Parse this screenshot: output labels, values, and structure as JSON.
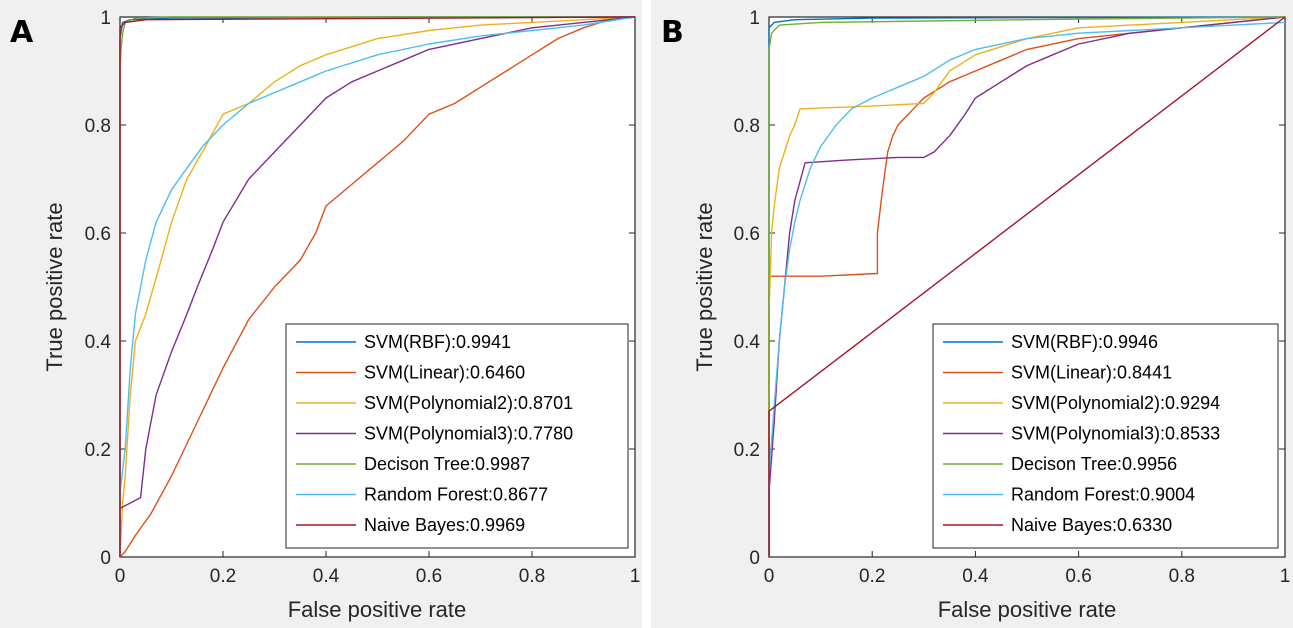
{
  "chart_data": [
    {
      "type": "line",
      "panel_label": "A",
      "xlabel": "False positive rate",
      "ylabel": "True positive rate",
      "xlim": [
        0,
        1
      ],
      "ylim": [
        0,
        1
      ],
      "xticks": [
        "0",
        "0.2",
        "0.4",
        "0.6",
        "0.8",
        "1"
      ],
      "yticks": [
        "0",
        "0.2",
        "0.4",
        "0.6",
        "0.8",
        "1"
      ],
      "grid": false,
      "legend_position": "bottom-right",
      "series": [
        {
          "name": "SVM(RBF):0.9941",
          "color": "#0072BD",
          "points": [
            [
              0,
              0
            ],
            [
              0,
              0.96
            ],
            [
              0.005,
              0.99
            ],
            [
              0.02,
              0.995
            ],
            [
              0.1,
              0.998
            ],
            [
              0.5,
              1
            ],
            [
              1,
              1
            ]
          ]
        },
        {
          "name": "SVM(Linear):0.6460",
          "color": "#D95319",
          "points": [
            [
              0,
              0
            ],
            [
              0.01,
              0.01
            ],
            [
              0.03,
              0.04
            ],
            [
              0.06,
              0.08
            ],
            [
              0.1,
              0.15
            ],
            [
              0.15,
              0.25
            ],
            [
              0.2,
              0.35
            ],
            [
              0.25,
              0.44
            ],
            [
              0.3,
              0.5
            ],
            [
              0.35,
              0.55
            ],
            [
              0.38,
              0.6
            ],
            [
              0.4,
              0.65
            ],
            [
              0.45,
              0.69
            ],
            [
              0.5,
              0.73
            ],
            [
              0.55,
              0.77
            ],
            [
              0.6,
              0.82
            ],
            [
              0.65,
              0.84
            ],
            [
              0.7,
              0.87
            ],
            [
              0.75,
              0.9
            ],
            [
              0.8,
              0.93
            ],
            [
              0.85,
              0.96
            ],
            [
              0.9,
              0.98
            ],
            [
              0.95,
              0.995
            ],
            [
              1,
              1
            ]
          ]
        },
        {
          "name": "SVM(Polynomial2):0.8701",
          "color": "#EDB120",
          "points": [
            [
              0,
              0
            ],
            [
              0.005,
              0.1
            ],
            [
              0.01,
              0.15
            ],
            [
              0.02,
              0.3
            ],
            [
              0.03,
              0.4
            ],
            [
              0.05,
              0.45
            ],
            [
              0.08,
              0.55
            ],
            [
              0.1,
              0.62
            ],
            [
              0.13,
              0.7
            ],
            [
              0.16,
              0.75
            ],
            [
              0.2,
              0.82
            ],
            [
              0.25,
              0.84
            ],
            [
              0.3,
              0.88
            ],
            [
              0.35,
              0.91
            ],
            [
              0.4,
              0.93
            ],
            [
              0.5,
              0.96
            ],
            [
              0.6,
              0.975
            ],
            [
              0.7,
              0.985
            ],
            [
              0.8,
              0.99
            ],
            [
              0.9,
              0.995
            ],
            [
              1,
              1
            ]
          ]
        },
        {
          "name": "SVM(Polynomial3):0.7780",
          "color": "#7E2F8E",
          "points": [
            [
              0,
              0
            ],
            [
              0,
              0.09
            ],
            [
              0.02,
              0.1
            ],
            [
              0.04,
              0.11
            ],
            [
              0.05,
              0.2
            ],
            [
              0.07,
              0.3
            ],
            [
              0.1,
              0.38
            ],
            [
              0.13,
              0.45
            ],
            [
              0.15,
              0.5
            ],
            [
              0.18,
              0.57
            ],
            [
              0.2,
              0.62
            ],
            [
              0.25,
              0.7
            ],
            [
              0.3,
              0.75
            ],
            [
              0.35,
              0.8
            ],
            [
              0.4,
              0.85
            ],
            [
              0.45,
              0.88
            ],
            [
              0.5,
              0.9
            ],
            [
              0.55,
              0.92
            ],
            [
              0.6,
              0.94
            ],
            [
              0.7,
              0.96
            ],
            [
              0.8,
              0.98
            ],
            [
              0.9,
              0.99
            ],
            [
              1,
              1
            ]
          ]
        },
        {
          "name": "Decison Tree:0.9987",
          "color": "#77AC30",
          "points": [
            [
              0,
              0
            ],
            [
              0,
              0.9
            ],
            [
              0.002,
              0.94
            ],
            [
              0.005,
              0.97
            ],
            [
              0.01,
              0.99
            ],
            [
              0.03,
              0.998
            ],
            [
              0.1,
              1
            ],
            [
              1,
              1
            ]
          ]
        },
        {
          "name": "Random Forest:0.8677",
          "color": "#4DBEEE",
          "points": [
            [
              0,
              0
            ],
            [
              0,
              0.12
            ],
            [
              0.01,
              0.2
            ],
            [
              0.02,
              0.35
            ],
            [
              0.03,
              0.45
            ],
            [
              0.05,
              0.55
            ],
            [
              0.07,
              0.62
            ],
            [
              0.1,
              0.68
            ],
            [
              0.13,
              0.72
            ],
            [
              0.16,
              0.76
            ],
            [
              0.2,
              0.8
            ],
            [
              0.25,
              0.84
            ],
            [
              0.3,
              0.86
            ],
            [
              0.35,
              0.88
            ],
            [
              0.4,
              0.9
            ],
            [
              0.5,
              0.93
            ],
            [
              0.6,
              0.95
            ],
            [
              0.7,
              0.965
            ],
            [
              0.8,
              0.975
            ],
            [
              0.9,
              0.985
            ],
            [
              1,
              1
            ]
          ]
        },
        {
          "name": "Naive Bayes:0.9969",
          "color": "#A2142F",
          "points": [
            [
              0,
              0
            ],
            [
              0,
              0.98
            ],
            [
              0.01,
              0.99
            ],
            [
              0.05,
              0.995
            ],
            [
              1,
              1
            ]
          ]
        }
      ]
    },
    {
      "type": "line",
      "panel_label": "B",
      "xlabel": "False positive rate",
      "ylabel": "True positive rate",
      "xlim": [
        0,
        1
      ],
      "ylim": [
        0,
        1
      ],
      "xticks": [
        "0",
        "0.2",
        "0.4",
        "0.6",
        "0.8",
        "1"
      ],
      "yticks": [
        "0",
        "0.2",
        "0.4",
        "0.6",
        "0.8",
        "1"
      ],
      "grid": false,
      "legend_position": "bottom-right",
      "series": [
        {
          "name": "SVM(RBF):0.9946",
          "color": "#0072BD",
          "points": [
            [
              0,
              0
            ],
            [
              0,
              0.98
            ],
            [
              0.01,
              0.99
            ],
            [
              0.05,
              0.995
            ],
            [
              0.2,
              0.998
            ],
            [
              1,
              1
            ]
          ]
        },
        {
          "name": "SVM(Linear):0.8441",
          "color": "#D95319",
          "points": [
            [
              0,
              0
            ],
            [
              0,
              0.52
            ],
            [
              0.1,
              0.52
            ],
            [
              0.21,
              0.525
            ],
            [
              0.21,
              0.6
            ],
            [
              0.22,
              0.68
            ],
            [
              0.23,
              0.75
            ],
            [
              0.24,
              0.78
            ],
            [
              0.25,
              0.8
            ],
            [
              0.28,
              0.83
            ],
            [
              0.3,
              0.85
            ],
            [
              0.35,
              0.88
            ],
            [
              0.4,
              0.9
            ],
            [
              0.45,
              0.92
            ],
            [
              0.5,
              0.94
            ],
            [
              0.6,
              0.96
            ],
            [
              0.7,
              0.97
            ],
            [
              0.8,
              0.98
            ],
            [
              0.9,
              0.99
            ],
            [
              1,
              1
            ]
          ]
        },
        {
          "name": "SVM(Polynomial2):0.9294",
          "color": "#EDB120",
          "points": [
            [
              0,
              0
            ],
            [
              0,
              0.45
            ],
            [
              0.005,
              0.6
            ],
            [
              0.01,
              0.65
            ],
            [
              0.02,
              0.72
            ],
            [
              0.03,
              0.75
            ],
            [
              0.04,
              0.78
            ],
            [
              0.05,
              0.8
            ],
            [
              0.06,
              0.83
            ],
            [
              0.2,
              0.835
            ],
            [
              0.3,
              0.84
            ],
            [
              0.32,
              0.86
            ],
            [
              0.35,
              0.9
            ],
            [
              0.4,
              0.93
            ],
            [
              0.5,
              0.96
            ],
            [
              0.6,
              0.98
            ],
            [
              0.7,
              0.985
            ],
            [
              0.8,
              0.99
            ],
            [
              0.9,
              0.995
            ],
            [
              1,
              1
            ]
          ]
        },
        {
          "name": "SVM(Polynomial3):0.8533",
          "color": "#7E2F8E",
          "points": [
            [
              0,
              0
            ],
            [
              0,
              0.12
            ],
            [
              0.01,
              0.25
            ],
            [
              0.02,
              0.4
            ],
            [
              0.03,
              0.5
            ],
            [
              0.04,
              0.6
            ],
            [
              0.05,
              0.66
            ],
            [
              0.07,
              0.73
            ],
            [
              0.15,
              0.735
            ],
            [
              0.25,
              0.74
            ],
            [
              0.3,
              0.74
            ],
            [
              0.32,
              0.75
            ],
            [
              0.35,
              0.78
            ],
            [
              0.38,
              0.82
            ],
            [
              0.4,
              0.85
            ],
            [
              0.45,
              0.88
            ],
            [
              0.5,
              0.91
            ],
            [
              0.55,
              0.93
            ],
            [
              0.6,
              0.95
            ],
            [
              0.7,
              0.97
            ],
            [
              0.8,
              0.98
            ],
            [
              0.9,
              0.99
            ],
            [
              1,
              1
            ]
          ]
        },
        {
          "name": "Decison Tree:0.9956",
          "color": "#77AC30",
          "points": [
            [
              0,
              0
            ],
            [
              0,
              0.94
            ],
            [
              0.005,
              0.97
            ],
            [
              0.02,
              0.985
            ],
            [
              0.1,
              0.99
            ],
            [
              0.5,
              0.995
            ],
            [
              1,
              1
            ]
          ]
        },
        {
          "name": "Random Forest:0.9004",
          "color": "#4DBEEE",
          "points": [
            [
              0,
              0
            ],
            [
              0,
              0.15
            ],
            [
              0.01,
              0.28
            ],
            [
              0.02,
              0.4
            ],
            [
              0.03,
              0.5
            ],
            [
              0.04,
              0.57
            ],
            [
              0.05,
              0.62
            ],
            [
              0.06,
              0.66
            ],
            [
              0.08,
              0.72
            ],
            [
              0.1,
              0.76
            ],
            [
              0.13,
              0.8
            ],
            [
              0.16,
              0.83
            ],
            [
              0.2,
              0.85
            ],
            [
              0.25,
              0.87
            ],
            [
              0.3,
              0.89
            ],
            [
              0.35,
              0.92
            ],
            [
              0.4,
              0.94
            ],
            [
              0.5,
              0.96
            ],
            [
              0.6,
              0.97
            ],
            [
              0.7,
              0.975
            ],
            [
              0.8,
              0.98
            ],
            [
              0.9,
              0.985
            ],
            [
              1,
              0.99
            ]
          ]
        },
        {
          "name": "Naive Bayes:0.6330",
          "color": "#A2142F",
          "points": [
            [
              0,
              0
            ],
            [
              0,
              0.27
            ],
            [
              1,
              1
            ]
          ]
        }
      ]
    }
  ]
}
